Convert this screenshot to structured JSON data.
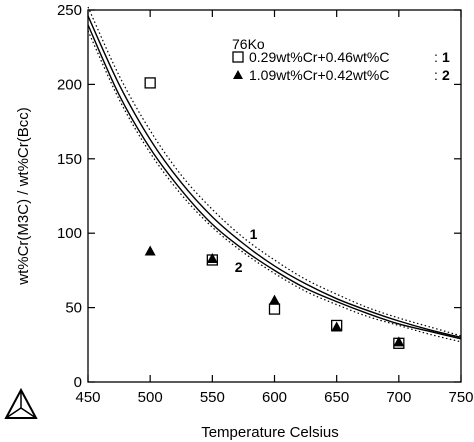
{
  "chart_data": {
    "type": "scatter",
    "title": "",
    "xlabel": "Temperature Celsius",
    "ylabel": "wt%Cr(M3C) / wt%Cr(Bcc)",
    "xlim": [
      450,
      750
    ],
    "ylim": [
      0,
      250
    ],
    "xticks": [
      450,
      500,
      550,
      600,
      650,
      700,
      750
    ],
    "yticks": [
      0,
      50,
      100,
      150,
      200,
      250
    ],
    "grid": false,
    "legend_placement": "top-right",
    "legend_title": "76Ko",
    "series": [
      {
        "name": "0.29wt%Cr+0.46wt%C",
        "legend_number": "1",
        "marker": "open-square",
        "points": [
          [
            500,
            201
          ],
          [
            550,
            82
          ],
          [
            600,
            49
          ],
          [
            650,
            38
          ],
          [
            700,
            26
          ]
        ]
      },
      {
        "name": "1.09wt%Cr+0.42wt%C",
        "legend_number": "2",
        "marker": "filled-triangle",
        "points": [
          [
            500,
            88
          ],
          [
            550,
            83
          ],
          [
            600,
            55
          ],
          [
            650,
            37
          ],
          [
            700,
            27
          ]
        ]
      }
    ],
    "curves": [
      {
        "label": "1",
        "style": "solid",
        "x": [
          450,
          475,
          500,
          525,
          550,
          575,
          600,
          625,
          650,
          675,
          700,
          725,
          750
        ],
        "y": [
          246,
          200,
          163,
          134,
          111,
          93,
          78,
          66,
          56,
          48,
          41,
          35,
          30
        ]
      },
      {
        "label": "2",
        "style": "solid",
        "x": [
          450,
          475,
          500,
          525,
          550,
          575,
          600,
          625,
          650,
          675,
          700,
          725,
          750
        ],
        "y": [
          240,
          193,
          157,
          129,
          106,
          89,
          75,
          63,
          54,
          46,
          39,
          34,
          29
        ]
      },
      {
        "label": "",
        "style": "dotted",
        "x": [
          450,
          475,
          500,
          525,
          550,
          575,
          600,
          625,
          650,
          675,
          700,
          725,
          750
        ],
        "y": [
          252,
          206,
          169,
          139,
          116,
          97,
          82,
          69,
          59,
          50,
          43,
          37,
          31
        ]
      },
      {
        "label": "",
        "style": "dotted",
        "x": [
          450,
          475,
          500,
          525,
          550,
          575,
          600,
          625,
          650,
          675,
          700,
          725,
          750
        ],
        "y": [
          236,
          190,
          154,
          126,
          104,
          87,
          73,
          61,
          52,
          44,
          38,
          32,
          27
        ]
      }
    ],
    "annotations": [
      {
        "text": "1",
        "x": 580,
        "y": 96
      },
      {
        "text": "2",
        "x": 568,
        "y": 74
      }
    ]
  }
}
